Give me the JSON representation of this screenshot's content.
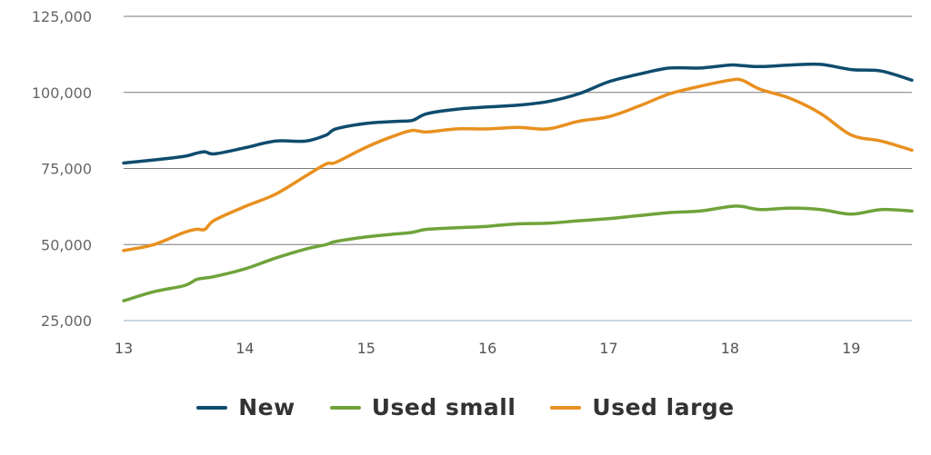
{
  "chart_data": {
    "type": "line",
    "title": "",
    "xlabel": "",
    "ylabel": "",
    "xlim": [
      13,
      19.5
    ],
    "ylim": [
      25000,
      125000
    ],
    "x_ticks": [
      13,
      14,
      15,
      16,
      17,
      18,
      19
    ],
    "x_tick_labels": [
      "13",
      "14",
      "15",
      "16",
      "17",
      "18",
      "19"
    ],
    "y_ticks": [
      25000,
      50000,
      75000,
      100000,
      125000
    ],
    "y_tick_labels": [
      "25,000",
      "50,000",
      "75,000",
      "100,000",
      "125,000"
    ],
    "grid": "horizontal",
    "legend_position": "bottom",
    "x": [
      13.0,
      13.25,
      13.5,
      13.6,
      13.67,
      13.75,
      14.0,
      14.25,
      14.5,
      14.67,
      14.75,
      15.0,
      15.25,
      15.38,
      15.5,
      15.75,
      16.0,
      16.25,
      16.5,
      16.75,
      17.0,
      17.25,
      17.5,
      17.75,
      18.0,
      18.1,
      18.25,
      18.5,
      18.75,
      19.0,
      19.25,
      19.5
    ],
    "series": [
      {
        "name": "New",
        "color": "#0f4c6e",
        "values": [
          76800,
          77800,
          79000,
          80000,
          80500,
          79800,
          81800,
          84000,
          84000,
          86000,
          88000,
          89800,
          90500,
          90800,
          93000,
          94500,
          95200,
          95800,
          97000,
          99500,
          103500,
          106000,
          108000,
          108000,
          109000,
          108800,
          108500,
          109000,
          109200,
          107500,
          107000,
          104000
        ]
      },
      {
        "name": "Used small",
        "color": "#6fa33a",
        "values": [
          31500,
          34500,
          36500,
          38500,
          39000,
          39500,
          42000,
          45500,
          48500,
          50000,
          51000,
          52500,
          53500,
          54000,
          55000,
          55500,
          56000,
          56800,
          57000,
          57800,
          58500,
          59500,
          60500,
          61000,
          62500,
          62500,
          61500,
          62000,
          61500,
          60000,
          61500,
          61000
        ]
      },
      {
        "name": "Used large",
        "color": "#e8901f",
        "values": [
          48000,
          50000,
          54000,
          55000,
          55000,
          58000,
          62500,
          66500,
          72500,
          76500,
          77000,
          82000,
          86000,
          87500,
          87000,
          88000,
          88000,
          88500,
          88000,
          90500,
          92000,
          95500,
          99500,
          102000,
          104000,
          104000,
          101000,
          98000,
          93000,
          86000,
          84000,
          81000
        ]
      }
    ]
  }
}
